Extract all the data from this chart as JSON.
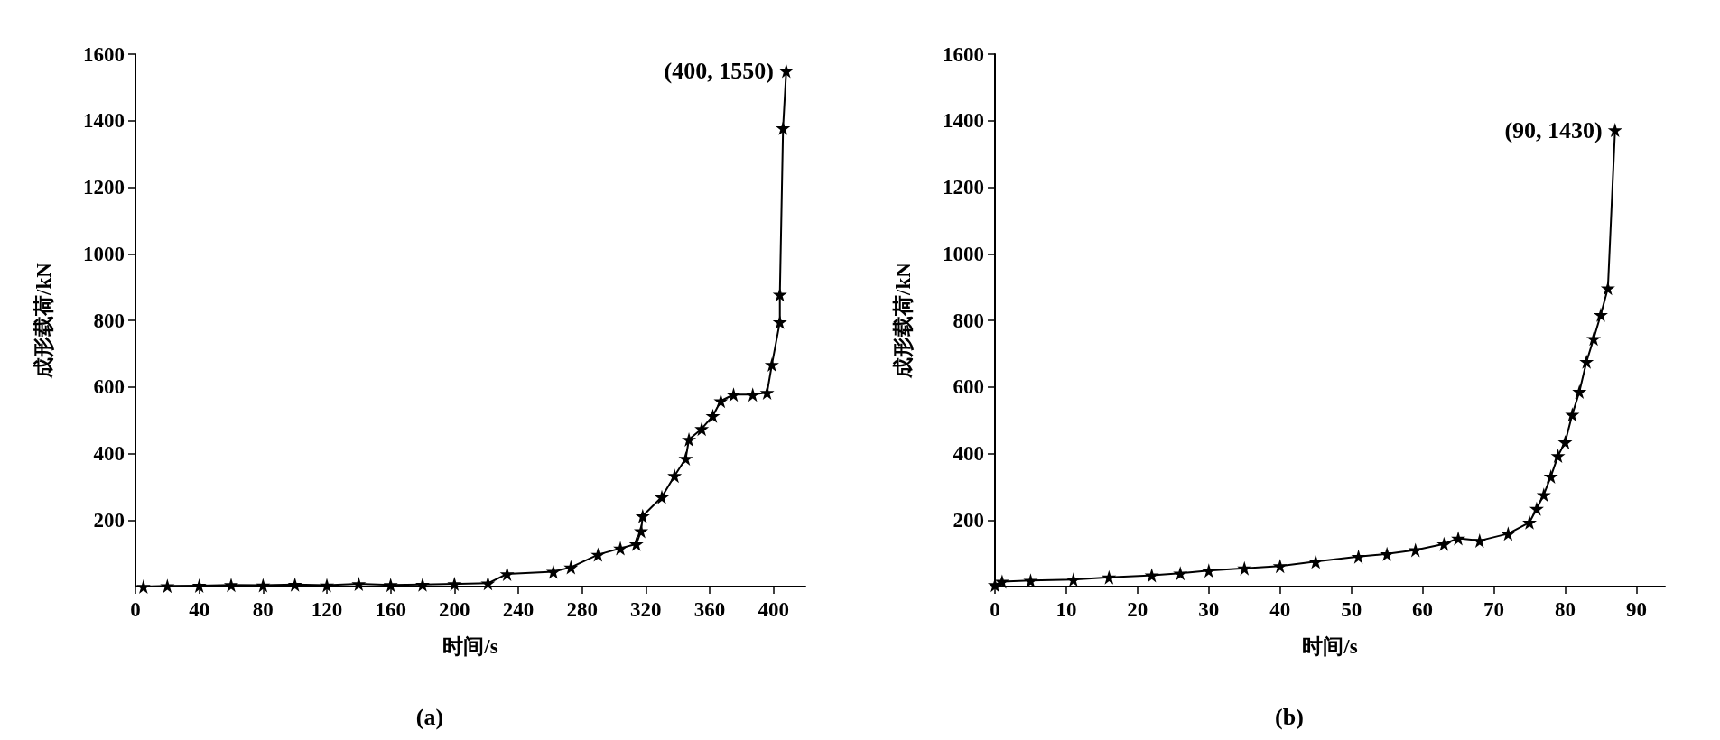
{
  "chart_data": [
    {
      "type": "line",
      "title": "(a)",
      "xlabel": "时间/s",
      "ylabel": "成形载荷/kN",
      "color": "#000000",
      "marker": "star",
      "line_style": "solid",
      "x": [
        5,
        20,
        40,
        60,
        80,
        100,
        120,
        140,
        160,
        180,
        200,
        221,
        233,
        262,
        273,
        290,
        304,
        314,
        317,
        318,
        330,
        338,
        345,
        347,
        355,
        362,
        367,
        375,
        387,
        396,
        399,
        404,
        404,
        406,
        408
      ],
      "values": [
        0,
        2,
        3,
        5,
        4,
        6,
        4,
        8,
        5,
        6,
        8,
        10,
        38,
        45,
        58,
        96,
        115,
        128,
        167,
        212,
        269,
        333,
        385,
        442,
        474,
        513,
        558,
        577,
        577,
        583,
        667,
        795,
        878,
        1378,
        1550
      ],
      "xlim": [
        0,
        420
      ],
      "xticks": [
        0,
        40,
        80,
        120,
        160,
        200,
        240,
        280,
        320,
        360,
        400
      ],
      "ylim": [
        0,
        1600
      ],
      "yticks": [
        200,
        400,
        600,
        800,
        1000,
        1200,
        1400,
        1600
      ],
      "annotations": [
        {
          "text": "(400, 1550)",
          "x": 408,
          "y": 1550
        }
      ]
    },
    {
      "type": "line",
      "title": "(b)",
      "xlabel": "时间/s",
      "ylabel": "成形载荷/kN",
      "color": "#000000",
      "marker": "star",
      "line_style": "solid",
      "x": [
        0,
        1,
        5,
        11,
        16,
        22,
        26,
        30,
        35,
        40,
        45,
        51,
        55,
        59,
        63,
        65,
        68,
        72,
        75,
        76,
        77,
        78,
        79,
        80,
        81,
        82,
        83,
        84,
        85,
        86,
        87
      ],
      "values": [
        5,
        15,
        18,
        21,
        28,
        34,
        40,
        48,
        55,
        62,
        75,
        90,
        98,
        110,
        128,
        145,
        138,
        159,
        193,
        234,
        276,
        331,
        393,
        434,
        517,
        586,
        676,
        745,
        817,
        897,
        1372
      ],
      "xlim": [
        0,
        94
      ],
      "xticks": [
        0,
        10,
        20,
        30,
        40,
        50,
        60,
        70,
        80,
        90
      ],
      "ylim": [
        0,
        1600
      ],
      "yticks": [
        200,
        400,
        600,
        800,
        1000,
        1200,
        1400,
        1600
      ],
      "annotations": [
        {
          "text": "(90, 1430)",
          "x": 87,
          "y": 1372
        }
      ]
    }
  ]
}
